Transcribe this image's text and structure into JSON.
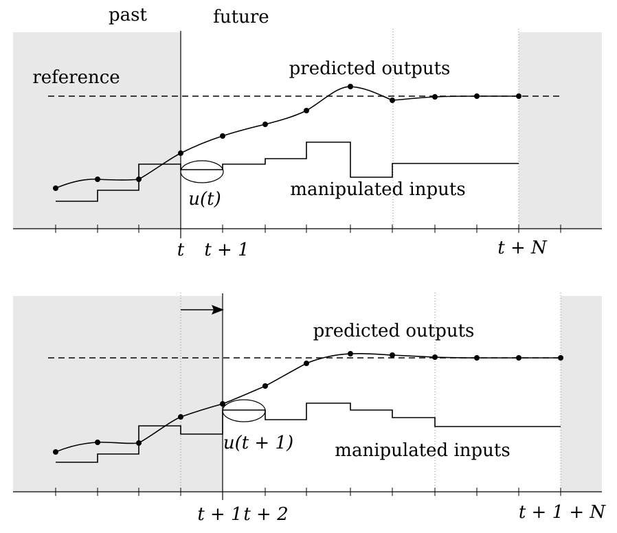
{
  "top": {
    "past_label": "past",
    "future_label": "future",
    "reference_label": "reference",
    "outputs_label": "predicted outputs",
    "inputs_label": "manipulated inputs",
    "u_label": "u(t)",
    "tick_t": "t",
    "tick_t1": "t + 1",
    "tick_tN": "t + N"
  },
  "bottom": {
    "outputs_label": "predicted outputs",
    "inputs_label": "manipulated inputs",
    "u_label": "u(t + 1)",
    "tick_t1": "t + 1",
    "tick_t2": "t + 2",
    "tick_t1N": "t + 1 + N"
  }
}
